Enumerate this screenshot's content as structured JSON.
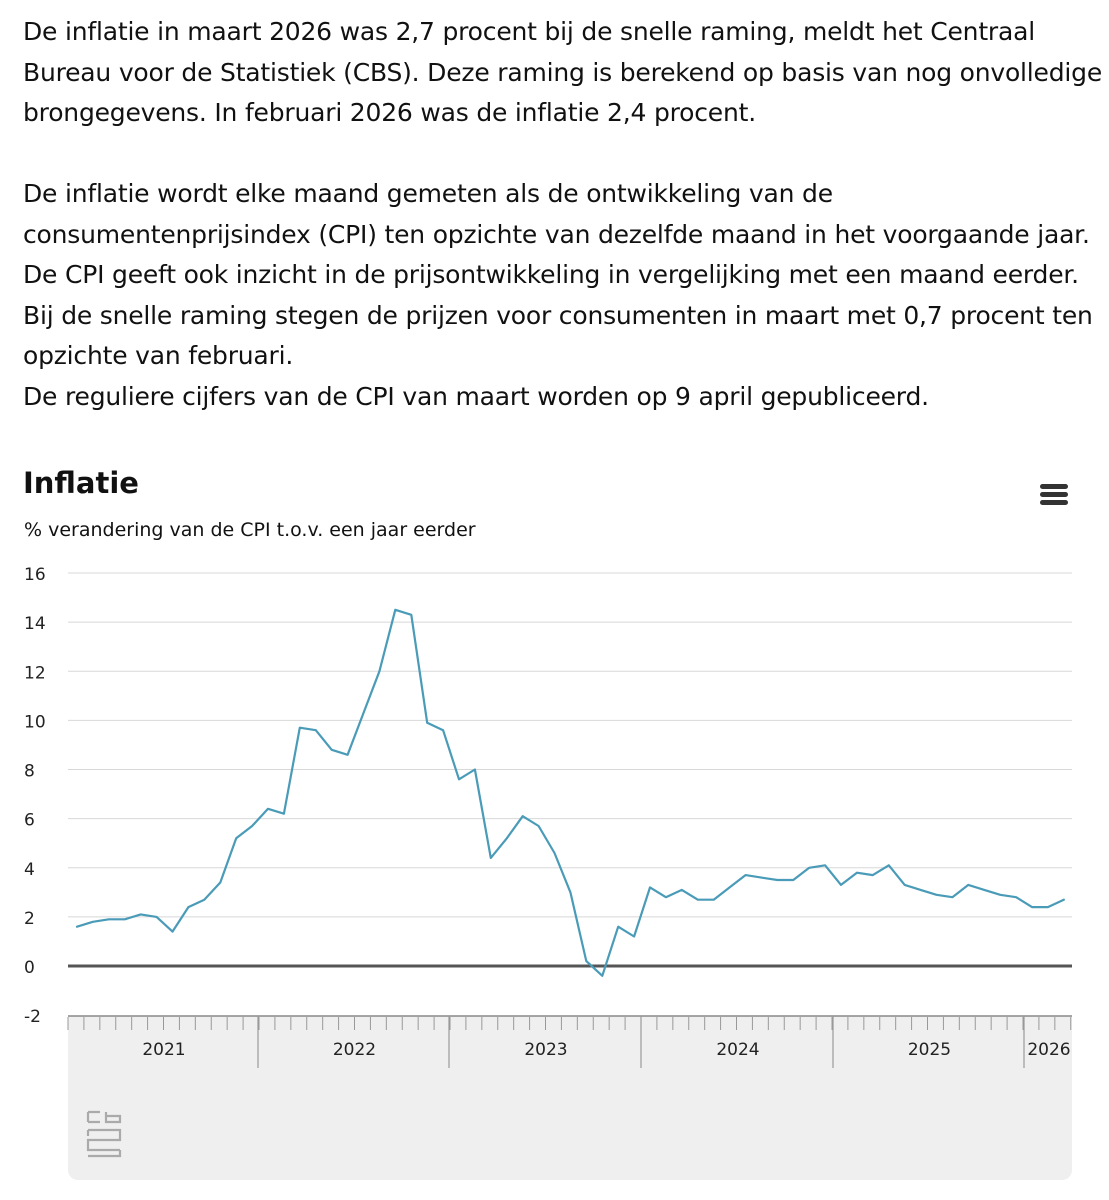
{
  "article": {
    "p1": "De inflatie in maart 2026 was 2,7 procent bij de snelle raming, meldt het Centraal Bureau voor de Statistiek (CBS). Deze raming is berekend op basis van nog onvolledige brongegevens. In februari 2026 was de inflatie 2,4 procent.",
    "p2": "De inflatie wordt elke maand gemeten als de ontwikkeling van de consumentenprijsindex (CPI) ten opzichte van dezelfde maand in het voorgaande jaar. De CPI geeft ook inzicht in de prijsontwikkeling in vergelijking met een maand eerder. Bij de snelle raming stegen de prijzen voor consumenten in maart met 0,7 procent ten opzichte van februari.",
    "p3": "De reguliere cijfers van de CPI van maart worden op 9 april gepubliceerd."
  },
  "chart_data": {
    "type": "line",
    "title": "Inflatie",
    "subtitle": "% verandering van de CPI t.o.v. een jaar eerder",
    "ylim": [
      -2,
      16
    ],
    "yticks": [
      "-2",
      "0",
      "2",
      "4",
      "6",
      "8",
      "10",
      "12",
      "14",
      "16"
    ],
    "grid": true,
    "zero_line": true,
    "x_start": "2021-01",
    "x_end": "2026-03",
    "year_labels": [
      "2021",
      "2022",
      "2023",
      "2024",
      "2025",
      "2026"
    ],
    "series": [
      {
        "color": "#4a9bb8",
        "values": [
          1.6,
          1.8,
          1.9,
          1.9,
          2.1,
          2.0,
          1.4,
          2.4,
          2.7,
          3.4,
          5.2,
          5.7,
          6.4,
          6.2,
          9.7,
          9.6,
          8.8,
          8.6,
          10.3,
          12.0,
          14.5,
          14.3,
          9.9,
          9.6,
          7.6,
          8.0,
          4.4,
          5.2,
          6.1,
          5.7,
          4.6,
          3.0,
          0.2,
          -0.4,
          1.6,
          1.2,
          3.2,
          2.8,
          3.1,
          2.7,
          2.7,
          3.2,
          3.7,
          3.6,
          3.5,
          3.5,
          4.0,
          4.1,
          3.3,
          3.8,
          3.7,
          4.1,
          3.3,
          3.1,
          2.9,
          2.8,
          3.3,
          3.1,
          2.9,
          2.8,
          2.4,
          2.4,
          2.7
        ]
      }
    ]
  },
  "ui": {
    "menu_icon": "hamburger-menu-icon",
    "logo_icon": "cbs-logo-icon"
  }
}
